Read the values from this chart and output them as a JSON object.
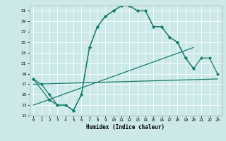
{
  "xlabel": "Humidex (Indice chaleur)",
  "bg_color": "#cce8e8",
  "line_color": "#1a7a6e",
  "xlim": [
    -0.5,
    23.5
  ],
  "ylim": [
    11,
    32
  ],
  "yticks": [
    11,
    13,
    15,
    17,
    19,
    21,
    23,
    25,
    27,
    29,
    31
  ],
  "xticks": [
    0,
    1,
    2,
    3,
    4,
    5,
    6,
    7,
    8,
    9,
    10,
    11,
    12,
    13,
    14,
    15,
    16,
    17,
    18,
    19,
    20,
    21,
    22,
    23
  ],
  "line1_x": [
    0,
    1,
    2,
    3,
    4,
    5,
    6,
    7,
    8,
    9,
    10,
    11,
    12,
    13,
    14,
    15,
    16,
    17,
    18,
    19,
    20
  ],
  "line1_y": [
    18,
    17,
    15,
    13,
    13,
    12,
    15,
    24,
    28,
    30,
    31,
    32,
    32,
    31,
    31,
    28,
    28,
    26,
    25,
    22,
    20
  ],
  "line2_x": [
    0,
    2,
    3,
    4,
    5,
    6,
    7,
    8,
    9,
    10,
    11,
    12,
    13,
    14,
    15,
    16,
    17,
    18,
    19,
    20,
    21,
    22,
    23
  ],
  "line2_y": [
    18,
    14,
    13,
    13,
    12,
    15,
    24,
    28,
    30,
    31,
    32,
    32,
    31,
    31,
    28,
    28,
    26,
    25,
    22,
    20,
    22,
    22,
    19
  ],
  "line3_x": [
    0,
    23
  ],
  "line3_y": [
    17,
    18
  ],
  "line4_x": [
    0,
    20
  ],
  "line4_y": [
    13,
    24
  ]
}
